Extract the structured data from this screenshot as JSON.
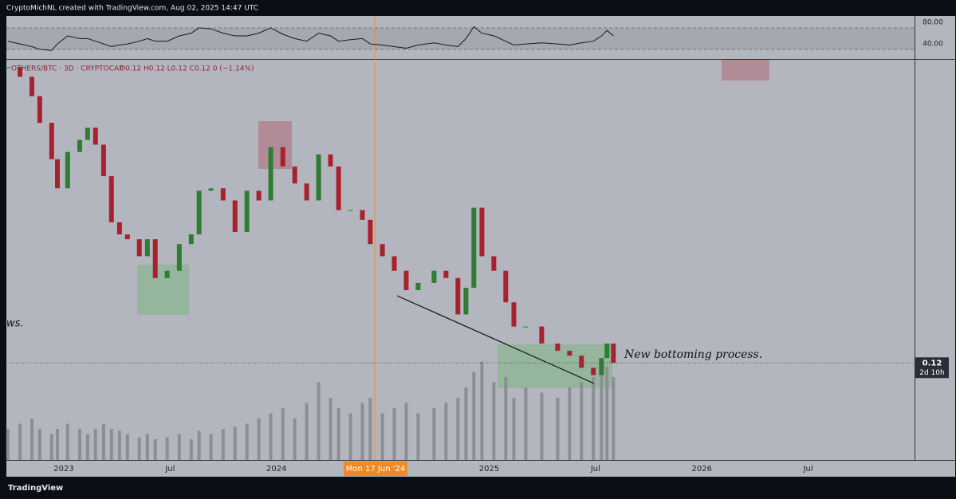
{
  "header": "CryptoMichNL created with TradingView.com, Aug 02, 2025 14:47 UTC",
  "legend": {
    "symbol": "OTHERS/BTC · 3D · CRYPTOCAP",
    "ohlc": "O0.12 H0.12 L0.12 C0.12 0 (−1.14%)"
  },
  "annotations": [
    "ws.",
    "New bottoming process."
  ],
  "crosshair_label": "Mon 17 Jun '24",
  "price_label": {
    "value": 0.12,
    "countdown": "2d 10h"
  },
  "footer": "TradingView",
  "chart_data": {
    "type": "candlestick",
    "x": [
      2022.737,
      2022.794,
      2022.85,
      2022.887,
      2022.943,
      2022.97,
      2023.018,
      2023.075,
      2023.112,
      2023.149,
      2023.187,
      2023.224,
      2023.262,
      2023.299,
      2023.355,
      2023.393,
      2023.43,
      2023.486,
      2023.543,
      2023.599,
      2023.636,
      2023.692,
      2023.749,
      2023.805,
      2023.861,
      2023.917,
      2023.973,
      2024.03,
      2024.086,
      2024.142,
      2024.198,
      2024.254,
      2024.292,
      2024.348,
      2024.404,
      2024.441,
      2024.498,
      2024.554,
      2024.61,
      2024.666,
      2024.741,
      2024.797,
      2024.853,
      2024.891,
      2024.928,
      2024.966,
      2025.022,
      2025.078,
      2025.116,
      2025.172,
      2025.247,
      2025.322,
      2025.378,
      2025.434,
      2025.49,
      2025.528,
      2025.554,
      2025.584
    ],
    "values": [
      0.242,
      0.238,
      0.23,
      0.219,
      0.204,
      0.192,
      0.207,
      0.212,
      0.217,
      0.21,
      0.197,
      0.178,
      0.173,
      0.171,
      0.164,
      0.171,
      0.155,
      0.158,
      0.169,
      0.173,
      0.191,
      0.192,
      0.187,
      0.174,
      0.191,
      0.187,
      0.209,
      0.201,
      0.194,
      0.187,
      0.206,
      0.201,
      0.183,
      0.183,
      0.179,
      0.169,
      0.164,
      0.158,
      0.15,
      0.153,
      0.158,
      0.155,
      0.14,
      0.151,
      0.184,
      0.164,
      0.158,
      0.145,
      0.135,
      0.135,
      0.128,
      0.125,
      0.123,
      0.118,
      0.115,
      0.122,
      0.128,
      0.12
    ],
    "volume": [
      30,
      35,
      40,
      30,
      25,
      30,
      35,
      30,
      25,
      30,
      35,
      30,
      28,
      25,
      22,
      25,
      20,
      22,
      25,
      20,
      28,
      25,
      30,
      32,
      35,
      40,
      45,
      50,
      40,
      55,
      75,
      60,
      50,
      45,
      55,
      60,
      45,
      50,
      55,
      45,
      50,
      55,
      60,
      70,
      85,
      95,
      75,
      80,
      60,
      70,
      65,
      60,
      70,
      75,
      80,
      95,
      90,
      80
    ],
    "rsi": [
      45,
      40,
      35,
      30,
      28,
      40,
      55,
      50,
      50,
      45,
      40,
      35,
      38,
      40,
      45,
      50,
      45,
      45,
      55,
      60,
      70,
      68,
      60,
      55,
      55,
      60,
      70,
      58,
      50,
      45,
      60,
      55,
      45,
      48,
      50,
      40,
      38,
      35,
      32,
      38,
      42,
      38,
      35,
      50,
      72,
      60,
      55,
      45,
      38,
      40,
      42,
      40,
      38,
      42,
      45,
      55,
      65,
      55
    ],
    "xlim": [
      2022.73,
      2027.0
    ],
    "xticks": [
      2023,
      {
        "value": 2023.5,
        "label": "Jul"
      },
      2024,
      2025,
      {
        "value": 2025.5,
        "label": "Jul"
      },
      2026,
      {
        "value": 2026.5,
        "label": "Jul"
      }
    ],
    "ylim": [
      0.08,
      0.245
    ],
    "volume_lim": [
      0,
      100
    ],
    "rsi_lim": [
      12,
      92
    ],
    "rsi_ticks": [
      {
        "value": 80,
        "label": "80.00"
      },
      {
        "value": 40,
        "label": "40.00"
      }
    ],
    "up_color": "#2e7d32",
    "down_color": "#a8222e",
    "volume_color": "#8c8e96",
    "rsi_color": "#1a1a1a"
  }
}
